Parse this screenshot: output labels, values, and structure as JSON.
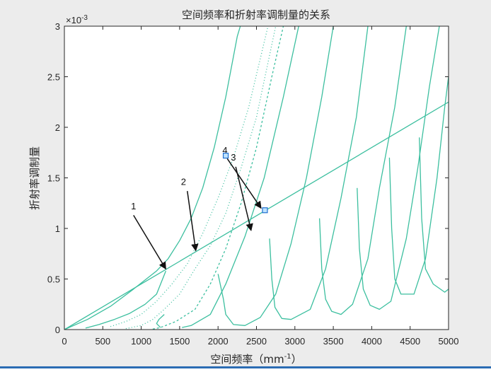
{
  "colors": {
    "curve": "#3cbf9f",
    "arrow": "#111111",
    "marker": "#1f6fd0",
    "axes": "#262626",
    "background": "#ececec",
    "plot": "#ffffff"
  },
  "chart_data": {
    "type": "line",
    "title": "空间频率和折射率调制量的关系",
    "xlabel": "空间频率（mm",
    "xlabel_sup": "-1",
    "xlabel_end": "）",
    "ylabel": "折射率调制量",
    "xlim": [
      0,
      5000
    ],
    "ylim": [
      0,
      0.003
    ],
    "exponent_label": "×10",
    "exponent_power": "-3",
    "x_ticks": [
      0,
      500,
      1000,
      1500,
      2000,
      2500,
      3000,
      3500,
      4000,
      4500,
      5000
    ],
    "x_tick_labels": [
      "0",
      "500",
      "1000",
      "1500",
      "2000",
      "2500",
      "3000",
      "3500",
      "4000",
      "4500",
      "5000"
    ],
    "y_ticks": [
      0,
      0.0005,
      0.001,
      0.0015,
      0.002,
      0.0025,
      0.003
    ],
    "y_tick_labels": [
      "0",
      "0.5",
      "1",
      "1.5",
      "2",
      "2.5",
      "3"
    ],
    "grid": false,
    "series": [
      {
        "style": "solid",
        "points": [
          [
            0,
            0
          ],
          [
            500,
            0.000225
          ],
          [
            1000,
            0.00045
          ],
          [
            1500,
            0.000675
          ],
          [
            2000,
            0.0009
          ],
          [
            2500,
            0.001125
          ],
          [
            3000,
            0.00135
          ],
          [
            3500,
            0.001575
          ],
          [
            4000,
            0.0018
          ],
          [
            4500,
            0.002025
          ],
          [
            5000,
            0.00225
          ]
        ]
      },
      {
        "style": "solid",
        "points": [
          [
            0,
            0
          ],
          [
            300,
            0.0001
          ],
          [
            600,
            0.00023
          ],
          [
            900,
            0.0004
          ],
          [
            1200,
            0.00058
          ],
          [
            1350,
            0.0007
          ],
          [
            1500,
            0.00088
          ],
          [
            1650,
            0.0011
          ],
          [
            1800,
            0.0014
          ],
          [
            1950,
            0.0018
          ],
          [
            2100,
            0.0023
          ],
          [
            2250,
            0.0029
          ],
          [
            2290,
            0.003
          ]
        ]
      },
      {
        "style": "solid",
        "points": [
          [
            275,
            1.5e-05
          ],
          [
            450,
            5e-05
          ],
          [
            650,
            0.0001
          ],
          [
            850,
            0.00016
          ],
          [
            1050,
            0.00025
          ],
          [
            1200,
            0.00035
          ],
          [
            1320,
            0.00058
          ]
        ]
      },
      {
        "style": "dotted",
        "points": [
          [
            600,
            3e-05
          ],
          [
            800,
            8e-05
          ],
          [
            1000,
            0.00015
          ],
          [
            1200,
            0.00028
          ],
          [
            1400,
            0.00045
          ],
          [
            1600,
            0.00065
          ],
          [
            1800,
            0.00095
          ],
          [
            2000,
            0.0013
          ],
          [
            2200,
            0.0017
          ],
          [
            2400,
            0.0022
          ],
          [
            2650,
            0.003
          ]
        ]
      },
      {
        "style": "dotted",
        "points": [
          [
            800,
            1e-05
          ],
          [
            1000,
            4e-05
          ],
          [
            1150,
            0.0001
          ],
          [
            1300,
            0.0002
          ],
          [
            1500,
            0.00035
          ],
          [
            1700,
            0.0006
          ],
          [
            1900,
            0.00083
          ],
          [
            2100,
            0.00115
          ],
          [
            2300,
            0.0016
          ],
          [
            2500,
            0.0021
          ],
          [
            2750,
            0.003
          ]
        ]
      },
      {
        "style": "dashed",
        "points": [
          [
            1150,
            5e-06
          ],
          [
            1250,
            2e-05
          ],
          [
            1450,
            8e-05
          ],
          [
            1700,
            0.0002
          ],
          [
            1900,
            0.00045
          ],
          [
            2100,
            0.0008
          ],
          [
            2300,
            0.00125
          ],
          [
            2500,
            0.0018
          ],
          [
            2700,
            0.0025
          ],
          [
            2850,
            0.003
          ]
        ]
      },
      {
        "style": "solid",
        "points": [
          [
            1250,
            2e-05
          ],
          [
            1200,
            6e-05
          ],
          [
            1230,
            0.0001
          ],
          [
            1300,
            0.00015
          ]
        ]
      },
      {
        "style": "solid",
        "points": [
          [
            1530,
            2e-05
          ],
          [
            1650,
            4e-05
          ],
          [
            1900,
            0.00015
          ],
          [
            2100,
            0.00045
          ],
          [
            2350,
            0.00092
          ],
          [
            2600,
            0.0015
          ],
          [
            2850,
            0.0023
          ],
          [
            3050,
            0.003
          ]
        ]
      },
      {
        "style": "solid",
        "points": [
          [
            2000,
            0.00055
          ],
          [
            2070,
            0.0003
          ],
          [
            2100,
            0.00015
          ],
          [
            2200,
            5e-05
          ],
          [
            2350,
            4e-05
          ],
          [
            2550,
            0.00012
          ],
          [
            2750,
            0.00035
          ],
          [
            2950,
            0.00085
          ],
          [
            3150,
            0.0015
          ],
          [
            3350,
            0.0023
          ],
          [
            3500,
            0.003
          ]
        ]
      },
      {
        "style": "solid",
        "points": [
          [
            2670,
            0.0009
          ],
          [
            2700,
            0.0005
          ],
          [
            2740,
            0.00022
          ],
          [
            2830,
            0.00011
          ],
          [
            2950,
            0.0001
          ],
          [
            3200,
            0.0002
          ],
          [
            3400,
            0.0006
          ],
          [
            3600,
            0.0013
          ],
          [
            3800,
            0.0021
          ],
          [
            3950,
            0.003
          ]
        ]
      },
      {
        "style": "solid",
        "points": [
          [
            3320,
            0.0011
          ],
          [
            3350,
            0.0006
          ],
          [
            3400,
            0.0003
          ],
          [
            3480,
            0.00018
          ],
          [
            3600,
            0.00015
          ],
          [
            3750,
            0.00025
          ],
          [
            3950,
            0.0007
          ],
          [
            4100,
            0.0014
          ],
          [
            4300,
            0.0022
          ],
          [
            4450,
            0.003
          ]
        ]
      },
      {
        "style": "solid",
        "points": [
          [
            3810,
            0.0014
          ],
          [
            3840,
            0.0008
          ],
          [
            3890,
            0.0004
          ],
          [
            3980,
            0.00024
          ],
          [
            4100,
            0.0002
          ],
          [
            4250,
            0.00028
          ],
          [
            4450,
            0.0009
          ],
          [
            4600,
            0.0016
          ],
          [
            4750,
            0.0024
          ],
          [
            4880,
            0.003
          ]
        ]
      },
      {
        "style": "solid",
        "points": [
          [
            4230,
            0.0017
          ],
          [
            4260,
            0.001
          ],
          [
            4300,
            0.0005
          ],
          [
            4380,
            0.00035
          ],
          [
            4550,
            0.00035
          ],
          [
            4700,
            0.0007
          ],
          [
            4850,
            0.0015
          ],
          [
            4950,
            0.0022
          ],
          [
            5000,
            0.0025
          ]
        ]
      },
      {
        "style": "solid",
        "points": [
          [
            4620,
            0.0019
          ],
          [
            4650,
            0.0011
          ],
          [
            4700,
            0.0006
          ],
          [
            4800,
            0.00045
          ],
          [
            4950,
            0.00037
          ],
          [
            5000,
            0.0004
          ]
        ]
      }
    ],
    "annotations": [
      {
        "label": "1",
        "text_at": [
          900,
          0.00119
        ],
        "from": [
          900,
          0.00113
        ],
        "to": [
          1320,
          0.0006
        ]
      },
      {
        "label": "2",
        "text_at": [
          1550,
          0.00143
        ],
        "from": [
          1600,
          0.00137
        ],
        "to": [
          1710,
          0.00078
        ]
      },
      {
        "label": "3",
        "text_at": [
          2200,
          0.00167
        ],
        "from": [
          2230,
          0.00161
        ],
        "to": [
          2430,
          0.00098
        ]
      },
      {
        "label": "4",
        "text_at": [
          2090,
          0.00174
        ],
        "from": [
          2120,
          0.00169
        ],
        "to": [
          2560,
          0.0012
        ]
      }
    ],
    "markers": [
      [
        2610,
        0.00118
      ],
      [
        2100,
        0.00172
      ]
    ]
  }
}
